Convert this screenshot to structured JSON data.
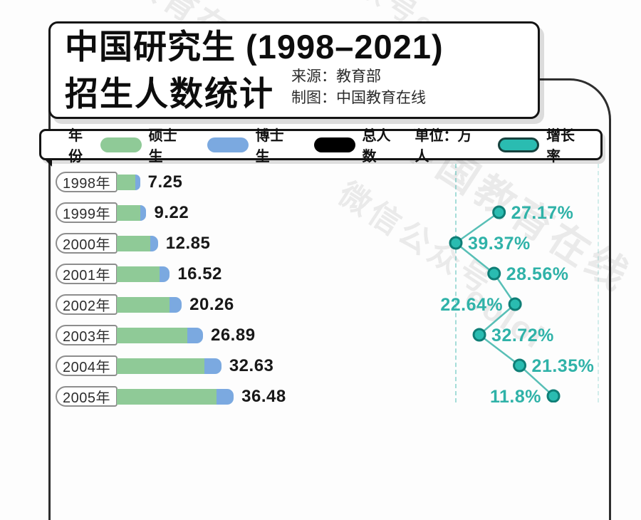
{
  "title": {
    "line1": "中国研究生 (1998–2021)",
    "line2": "招生人数统计"
  },
  "source": {
    "source_line": "来源：教育部",
    "credit_line": "制图：中国教育在线"
  },
  "legend": {
    "year_label": "年份",
    "masters_label": "硕士生",
    "phd_label": "博士生",
    "total_label": "总人数",
    "unit_label": "单位：万人",
    "growth_label": "增长率"
  },
  "colors": {
    "masters": "#8fca97",
    "phd": "#7ba9e0",
    "growth_fill": "#2abcb1",
    "growth_stroke": "#0f7e76",
    "growth_line": "#58bfb6",
    "growth_text": "#2fb2a8",
    "black_pill": "#000000"
  },
  "watermarks": [
    "中国教育在线",
    "微信公众号",
    "eolol",
    "微信公众号eol",
    "中国教育在线"
  ],
  "chart_data": {
    "type": "bar",
    "title": "中国研究生 (1998–2021) 招生人数统计",
    "unit": "万人",
    "note_visible_range": "rows 1998年–2005年 visible in crop",
    "categories": [
      "1998年",
      "1999年",
      "2000年",
      "2001年",
      "2002年",
      "2003年",
      "2004年",
      "2005年"
    ],
    "totals": [
      7.25,
      9.22,
      12.85,
      16.52,
      20.26,
      26.89,
      32.63,
      36.48
    ],
    "total_labels": [
      "7.25",
      "9.22",
      "12.85",
      "16.52",
      "20.26",
      "26.89",
      "32.63",
      "36.48"
    ],
    "series": [
      {
        "name": "硕士生",
        "values": [
          5.75,
          7.23,
          10.34,
          13.31,
          16.43,
          22.02,
          27.3,
          31.0
        ]
      },
      {
        "name": "博士生",
        "values": [
          1.5,
          1.99,
          2.51,
          3.21,
          3.83,
          4.87,
          5.33,
          5.48
        ]
      }
    ],
    "growth_rate": {
      "name": "增长率",
      "values": [
        null,
        27.17,
        39.37,
        28.56,
        22.64,
        32.72,
        21.35,
        11.8
      ],
      "labels": [
        "",
        "27.17%",
        "39.37%",
        "28.56%",
        "22.64%",
        "32.72%",
        "21.35%",
        "11.8%"
      ],
      "label_side": [
        "",
        "right",
        "right",
        "right",
        "left",
        "right",
        "right",
        "left"
      ]
    }
  }
}
